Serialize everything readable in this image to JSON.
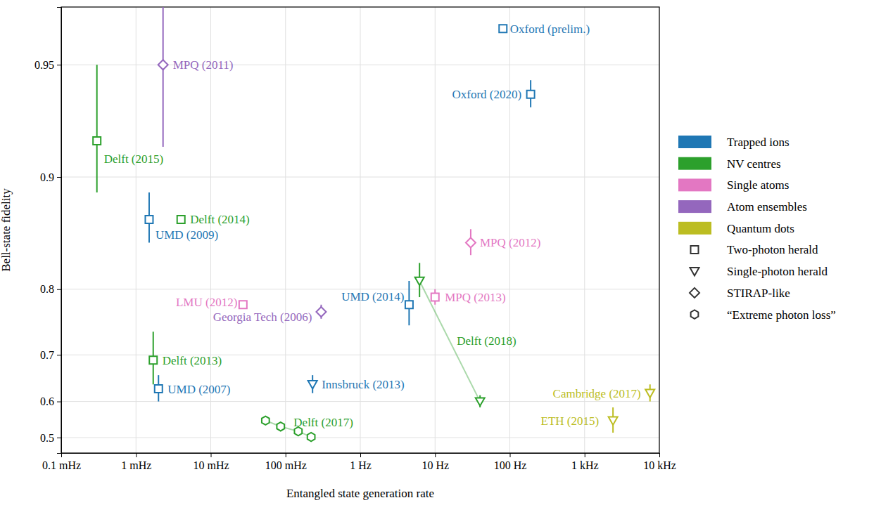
{
  "chart_data": {
    "type": "scatter",
    "x_label": "Entangled state generation rate",
    "y_label": "Bell-state fidelity",
    "log": true,
    "grid": true,
    "legend": "right",
    "xlim": [
      0.0001,
      10000
    ],
    "ylim": [
      0.45,
      0.965
    ],
    "xticks": [
      {
        "value": 0.0001,
        "label": "0.1 mHz"
      },
      {
        "value": 0.001,
        "label": "1 mHz"
      },
      {
        "value": 0.01,
        "label": "10 mHz"
      },
      {
        "value": 0.1,
        "label": "100 mHz"
      },
      {
        "value": 1,
        "label": "1 Hz"
      },
      {
        "value": 10,
        "label": "10 Hz"
      },
      {
        "value": 100,
        "label": "100 Hz"
      },
      {
        "value": 1000,
        "label": "1 kHz"
      },
      {
        "value": 10000,
        "label": "10 kHz"
      }
    ],
    "yticks": [
      0.5,
      0.6,
      0.7,
      0.8,
      0.9,
      0.95
    ],
    "platforms": [
      {
        "name": "Trapped ions",
        "color": "#1f77b4"
      },
      {
        "name": "NV centres",
        "color": "#2ca02c"
      },
      {
        "name": "Single atoms",
        "color": "#e377c2"
      },
      {
        "name": "Atom ensembles",
        "color": "#9467bd"
      },
      {
        "name": "Quantum dots",
        "color": "#bcbd22"
      }
    ],
    "markers": [
      {
        "name": "Two-photon herald",
        "marker": "square"
      },
      {
        "name": "Single-photon herald",
        "marker": "triangle_down"
      },
      {
        "name": "STIRAP-like",
        "marker": "diamond"
      },
      {
        "name": "“Extreme photon loss”",
        "marker": "hexagon"
      }
    ],
    "series": [
      {
        "name": "Oxford (prelim.)",
        "color": "#1f77b4",
        "marker": "square",
        "x": [
          81
        ],
        "values": [
          0.96
        ],
        "errors": [
          null
        ]
      },
      {
        "name": "Oxford (2020)",
        "color": "#1f77b4",
        "marker": "square",
        "x": [
          190
        ],
        "values": [
          0.94
        ],
        "errors": [
          0.005
        ]
      },
      {
        "name": "MPQ (2011)",
        "color": "#9467bd",
        "marker": "diamond",
        "x": [
          0.0023
        ],
        "values": [
          0.95
        ],
        "errors": [
          0.033
        ]
      },
      {
        "name": "Delft (2015)",
        "color": "#2ca02c",
        "marker": "square",
        "x": [
          0.0003
        ],
        "values": [
          0.92
        ],
        "errors": [
          0.03
        ]
      },
      {
        "name": "UMD (2009)",
        "color": "#1f77b4",
        "marker": "square",
        "x": [
          0.0015
        ],
        "values": [
          0.87
        ],
        "errors": [
          0.02
        ]
      },
      {
        "name": "Delft (2014)",
        "color": "#2ca02c",
        "marker": "square",
        "x": [
          0.004
        ],
        "values": [
          0.87
        ],
        "errors": [
          null
        ]
      },
      {
        "name": "MPQ (2012)",
        "color": "#e377c2",
        "marker": "diamond",
        "x": [
          30
        ],
        "values": [
          0.85
        ],
        "errors": [
          0.012
        ]
      },
      {
        "name": "Delft (2018)",
        "color": "#2ca02c",
        "marker": "triangle_down",
        "line_style": "solid",
        "x": [
          6.2,
          40
        ],
        "values": [
          0.81,
          0.6
        ],
        "errors": [
          0.02,
          0.015
        ]
      },
      {
        "name": "MPQ (2013)",
        "color": "#e377c2",
        "marker": "square",
        "x": [
          10
        ],
        "values": [
          0.79
        ],
        "errors": [
          0.01
        ]
      },
      {
        "name": "UMD (2014)",
        "color": "#1f77b4",
        "marker": "square",
        "x": [
          4.5
        ],
        "values": [
          0.78
        ],
        "errors": [
          0.03
        ]
      },
      {
        "name": "LMU (2012)",
        "color": "#e377c2",
        "marker": "square",
        "x": [
          0.027
        ],
        "values": [
          0.78
        ],
        "errors": [
          null
        ]
      },
      {
        "name": "Georgia Tech (2006)",
        "color": "#9467bd",
        "marker": "diamond",
        "x": [
          0.3
        ],
        "values": [
          0.77
        ],
        "errors": [
          0.01
        ]
      },
      {
        "name": "Delft (2013)",
        "color": "#2ca02c",
        "marker": "square",
        "x": [
          0.0017
        ],
        "values": [
          0.69
        ],
        "errors": [
          0.05
        ]
      },
      {
        "name": "UMD (2007)",
        "color": "#1f77b4",
        "marker": "square",
        "x": [
          0.002
        ],
        "values": [
          0.63
        ],
        "errors": [
          0.03
        ]
      },
      {
        "name": "Innsbruck (2013)",
        "color": "#1f77b4",
        "marker": "triangle_down",
        "x": [
          0.23
        ],
        "values": [
          0.64
        ],
        "errors": [
          0.02
        ]
      },
      {
        "name": "Cambridge (2017)",
        "color": "#bcbd22",
        "marker": "triangle_down",
        "x": [
          7500
        ],
        "values": [
          0.62
        ],
        "errors": [
          0.02
        ]
      },
      {
        "name": "ETH (2015)",
        "color": "#bcbd22",
        "marker": "triangle_down",
        "x": [
          2400
        ],
        "values": [
          0.55
        ],
        "errors": [
          0.035
        ]
      },
      {
        "name": "Delft (2017)",
        "color": "#2ca02c",
        "marker": "hexagon",
        "line_style": "solid",
        "x": [
          0.054,
          0.086,
          0.148,
          0.22
        ],
        "values": [
          0.55,
          0.533,
          0.519,
          0.502
        ],
        "errors": [
          null,
          null,
          null,
          null
        ]
      }
    ]
  }
}
